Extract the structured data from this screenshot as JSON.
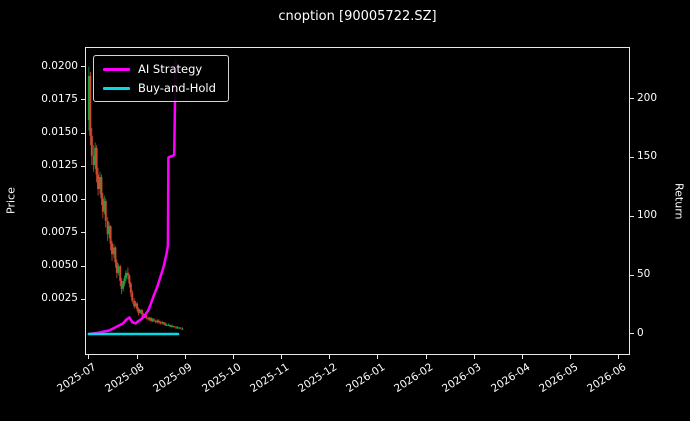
{
  "title": "cnoption [90005722.SZ]",
  "axes": {
    "left": {
      "label": "Price",
      "tick_values": [
        0.0025,
        0.005,
        0.0075,
        0.01,
        0.0125,
        0.015,
        0.0175,
        0.02
      ],
      "tick_labels": [
        "0.0025",
        "0.0050",
        "0.0075",
        "0.0100",
        "0.0125",
        "0.0150",
        "0.0175",
        "0.0200"
      ]
    },
    "right": {
      "label": "Return",
      "tick_values": [
        0,
        50,
        100,
        150,
        200
      ],
      "tick_labels": [
        "0",
        "50",
        "100",
        "150",
        "200"
      ]
    },
    "x": {
      "tick_values": [
        0,
        1,
        2,
        3,
        4,
        5,
        6,
        7,
        8,
        9,
        10,
        11
      ],
      "tick_labels": [
        "2025-07",
        "2025-08",
        "2025-09",
        "2025-10",
        "2025-11",
        "2025-12",
        "2026-01",
        "2026-02",
        "2026-03",
        "2026-04",
        "2026-05",
        "2026-06"
      ]
    }
  },
  "legend": [
    {
      "label": "AI Strategy",
      "color": "#ff00ff"
    },
    {
      "label": "Buy-and-Hold",
      "color": "#00dde6"
    }
  ],
  "chart_data": {
    "type": "line",
    "title": "cnoption [90005722.SZ]",
    "x_unit": "months since 2025-07 tick (0 = 2025-07, 1 = 2025-08, ...)",
    "x_range": [
      -0.06,
      11.21
    ],
    "left_axis": {
      "label": "Price",
      "range": [
        -0.0016,
        0.0214
      ],
      "tick_values": [
        0.0025,
        0.005,
        0.0075,
        0.01,
        0.0125,
        0.015,
        0.0175,
        0.02
      ]
    },
    "right_axis": {
      "label": "Return",
      "range": [
        -17,
        243
      ],
      "tick_values": [
        0,
        50,
        100,
        150,
        200
      ]
    },
    "grid": false,
    "legend_position": "upper-left",
    "colors": {
      "up": "#1f9d40",
      "down": "#cf4a31",
      "background": "#000000",
      "text": "#ffffff"
    },
    "series": [
      {
        "name": "AI Strategy",
        "axis": "right",
        "color": "#ff00ff",
        "linewidth": 2.5,
        "points": [
          [
            0.0,
            0
          ],
          [
            0.1,
            0.5
          ],
          [
            0.2,
            1
          ],
          [
            0.3,
            2
          ],
          [
            0.42,
            3
          ],
          [
            0.52,
            5
          ],
          [
            0.61,
            7
          ],
          [
            0.71,
            9
          ],
          [
            0.77,
            12
          ],
          [
            0.84,
            14
          ],
          [
            0.9,
            10
          ],
          [
            0.97,
            9
          ],
          [
            1.03,
            11
          ],
          [
            1.1,
            13
          ],
          [
            1.16,
            16
          ],
          [
            1.23,
            20
          ],
          [
            1.29,
            26
          ],
          [
            1.35,
            33
          ],
          [
            1.42,
            40
          ],
          [
            1.48,
            48
          ],
          [
            1.55,
            57
          ],
          [
            1.61,
            68
          ],
          [
            1.64,
            75
          ],
          [
            1.65,
            150
          ],
          [
            1.71,
            151
          ],
          [
            1.77,
            152
          ],
          [
            1.8,
            232
          ]
        ]
      },
      {
        "name": "Buy-and-Hold",
        "axis": "right",
        "color": "#00dde6",
        "linewidth": 2.5,
        "points": [
          [
            0.0,
            0
          ],
          [
            1.85,
            0
          ]
        ]
      }
    ],
    "candlesticks": {
      "format": "[x, open, high, low, close] — price on left axis",
      "bars": [
        [
          0.0,
          0.016,
          0.02,
          0.0152,
          0.0193
        ],
        [
          0.03,
          0.0193,
          0.0196,
          0.0141,
          0.0148
        ],
        [
          0.06,
          0.0148,
          0.0154,
          0.0126,
          0.0133
        ],
        [
          0.1,
          0.0133,
          0.0141,
          0.0121,
          0.0126
        ],
        [
          0.13,
          0.0126,
          0.0143,
          0.0123,
          0.0139
        ],
        [
          0.16,
          0.0139,
          0.0141,
          0.0113,
          0.0119
        ],
        [
          0.19,
          0.0119,
          0.0124,
          0.0103,
          0.0108
        ],
        [
          0.23,
          0.0108,
          0.0121,
          0.0104,
          0.0117
        ],
        [
          0.26,
          0.0117,
          0.0119,
          0.0096,
          0.0101
        ],
        [
          0.29,
          0.0101,
          0.0105,
          0.0086,
          0.0091
        ],
        [
          0.32,
          0.0091,
          0.0103,
          0.0089,
          0.0099
        ],
        [
          0.35,
          0.0099,
          0.0101,
          0.0079,
          0.0084
        ],
        [
          0.39,
          0.0084,
          0.0087,
          0.0069,
          0.0074
        ],
        [
          0.42,
          0.0074,
          0.0083,
          0.0071,
          0.008
        ],
        [
          0.45,
          0.008,
          0.0081,
          0.0062,
          0.0067
        ],
        [
          0.48,
          0.0067,
          0.0069,
          0.0054,
          0.0059
        ],
        [
          0.52,
          0.0059,
          0.0067,
          0.0056,
          0.0064
        ],
        [
          0.55,
          0.0064,
          0.0065,
          0.0049,
          0.0053
        ],
        [
          0.58,
          0.0053,
          0.0055,
          0.0041,
          0.0045
        ],
        [
          0.61,
          0.0045,
          0.0052,
          0.0043,
          0.005
        ],
        [
          0.65,
          0.005,
          0.0051,
          0.0035,
          0.0039
        ],
        [
          0.68,
          0.0039,
          0.0041,
          0.0029,
          0.0033
        ],
        [
          0.71,
          0.0033,
          0.0039,
          0.0031,
          0.0037
        ],
        [
          0.74,
          0.0037,
          0.0043,
          0.0035,
          0.0041
        ],
        [
          0.77,
          0.0041,
          0.0047,
          0.0039,
          0.0045
        ],
        [
          0.81,
          0.0045,
          0.0049,
          0.004,
          0.0043
        ],
        [
          0.84,
          0.0043,
          0.0044,
          0.0034,
          0.0037
        ],
        [
          0.87,
          0.0037,
          0.0038,
          0.0027,
          0.003
        ],
        [
          0.9,
          0.003,
          0.0032,
          0.0022,
          0.0024
        ],
        [
          0.94,
          0.0024,
          0.0026,
          0.0018,
          0.002
        ],
        [
          0.97,
          0.002,
          0.0024,
          0.0019,
          0.0022
        ],
        [
          1.0,
          0.0022,
          0.0023,
          0.0016,
          0.0018
        ],
        [
          1.03,
          0.0018,
          0.0019,
          0.0013,
          0.0015
        ],
        [
          1.06,
          0.0015,
          0.0018,
          0.0014,
          0.0017
        ],
        [
          1.1,
          0.0017,
          0.0018,
          0.0012,
          0.0014
        ],
        [
          1.13,
          0.0014,
          0.0015,
          0.0011,
          0.0012
        ],
        [
          1.16,
          0.0012,
          0.0014,
          0.0011,
          0.0013
        ],
        [
          1.19,
          0.0013,
          0.0014,
          0.001,
          0.0011
        ],
        [
          1.23,
          0.0011,
          0.0012,
          0.0009,
          0.001
        ],
        [
          1.26,
          0.001,
          0.0012,
          0.0009,
          0.0011
        ],
        [
          1.29,
          0.0011,
          0.0012,
          0.0008,
          0.0009
        ],
        [
          1.32,
          0.0009,
          0.0011,
          0.0008,
          0.001
        ],
        [
          1.35,
          0.001,
          0.0011,
          0.0008,
          0.0009
        ],
        [
          1.39,
          0.0009,
          0.001,
          0.0007,
          0.0008
        ],
        [
          1.42,
          0.0008,
          0.001,
          0.0007,
          0.0009
        ],
        [
          1.45,
          0.0009,
          0.001,
          0.0007,
          0.0008
        ],
        [
          1.48,
          0.0008,
          0.0009,
          0.0006,
          0.0007
        ],
        [
          1.52,
          0.0007,
          0.0009,
          0.0006,
          0.0008
        ],
        [
          1.55,
          0.0008,
          0.0008,
          0.0006,
          0.0007
        ],
        [
          1.58,
          0.0007,
          0.0008,
          0.0005,
          0.0006
        ],
        [
          1.61,
          0.0006,
          0.0007,
          0.0005,
          0.0006
        ],
        [
          1.65,
          0.0006,
          0.0007,
          0.0005,
          0.0006
        ],
        [
          1.68,
          0.0006,
          0.0006,
          0.0004,
          0.0005
        ],
        [
          1.71,
          0.0005,
          0.0006,
          0.0004,
          0.0005
        ],
        [
          1.74,
          0.0005,
          0.0006,
          0.0004,
          0.0005
        ],
        [
          1.77,
          0.0005,
          0.0005,
          0.0004,
          0.0004
        ],
        [
          1.81,
          0.0004,
          0.0005,
          0.0003,
          0.0004
        ],
        [
          1.84,
          0.0004,
          0.0005,
          0.0003,
          0.0004
        ],
        [
          1.87,
          0.0004,
          0.0004,
          0.0003,
          0.0004
        ],
        [
          1.9,
          0.0004,
          0.0004,
          0.0003,
          0.0003
        ],
        [
          1.94,
          0.0003,
          0.0004,
          0.0002,
          0.0003
        ]
      ]
    }
  }
}
